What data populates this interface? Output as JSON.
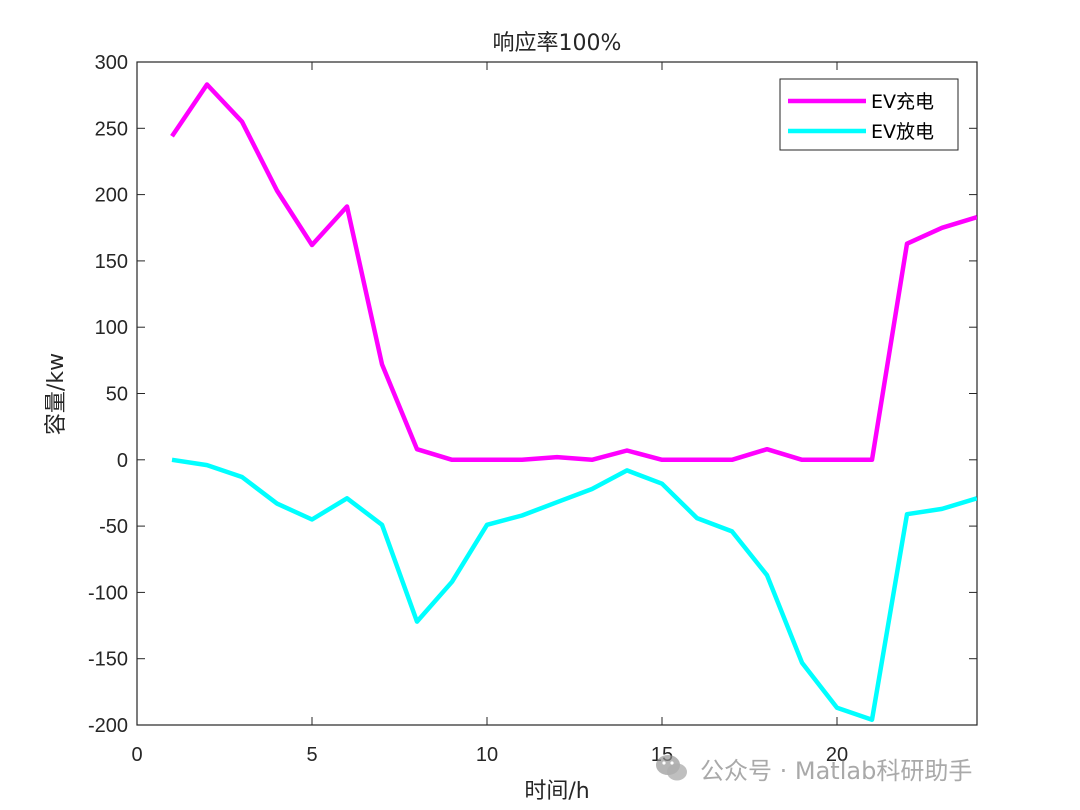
{
  "chart_data": {
    "type": "line",
    "title": "响应率100%",
    "xlabel": "时间/h",
    "ylabel": "容量/kw",
    "xlim": [
      0,
      24
    ],
    "ylim": [
      -200,
      300
    ],
    "xticks": [
      0,
      5,
      10,
      15,
      20
    ],
    "yticks": [
      300,
      250,
      200,
      150,
      100,
      50,
      0,
      -50,
      -100,
      -150,
      -200
    ],
    "grid": false,
    "legend_position": "top-right",
    "x": [
      1,
      2,
      3,
      4,
      5,
      6,
      7,
      8,
      9,
      10,
      11,
      12,
      13,
      14,
      15,
      16,
      17,
      18,
      19,
      20,
      21,
      22,
      23,
      24
    ],
    "series": [
      {
        "name": "EV充电",
        "color": "#ff00ff",
        "values": [
          244,
          283,
          255,
          203,
          162,
          191,
          72,
          8,
          0,
          0,
          0,
          2,
          0,
          7,
          0,
          0,
          0,
          8,
          0,
          0,
          0,
          163,
          175,
          183
        ]
      },
      {
        "name": "EV放电",
        "color": "#00ffff",
        "values": [
          0,
          -4,
          -13,
          -33,
          -45,
          -29,
          -49,
          -122,
          -92,
          -49,
          -42,
          -32,
          -22,
          -8,
          -18,
          -44,
          -54,
          -87,
          -153,
          -187,
          -196,
          -41,
          -37,
          -29
        ]
      }
    ]
  },
  "watermark": {
    "text": "公众号 · Matlab科研助手",
    "icon": "wechat-icon"
  }
}
